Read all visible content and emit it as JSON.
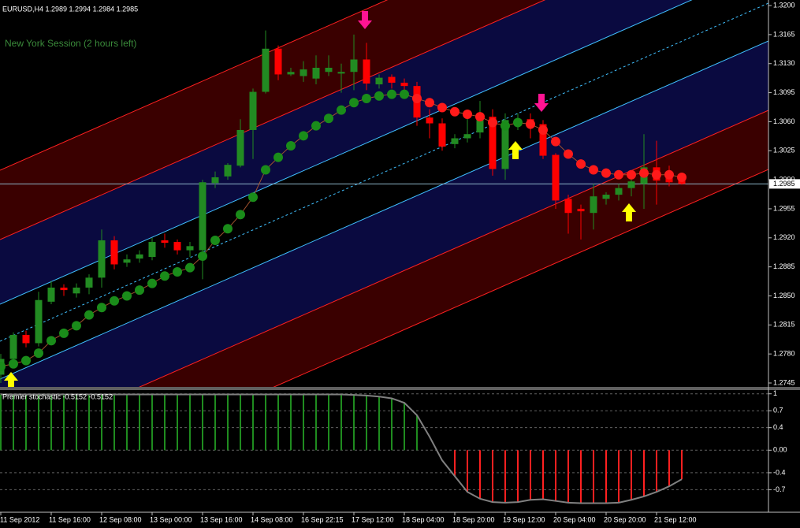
{
  "chart_data": [
    {
      "type": "candlestick",
      "title": "EURUSD,H4  1.2989 1.2994 1.2984 1.2985",
      "annotation": "New York Session (2 hours left)",
      "categories": [
        "11 Sep 2012",
        null,
        null,
        null,
        "11 Sep 16:00",
        null,
        null,
        null,
        "12 Sep 08:00",
        null,
        null,
        null,
        "13 Sep 00:00",
        null,
        null,
        null,
        "13 Sep 16:00",
        null,
        null,
        null,
        "14 Sep 08:00",
        null,
        null,
        null,
        "16 Sep 22:15",
        null,
        null,
        null,
        "17 Sep 12:00",
        null,
        null,
        null,
        "18 Sep 04:00",
        null,
        null,
        null,
        "18 Sep 20:00",
        null,
        null,
        null,
        "19 Sep 12:00",
        null,
        null,
        null,
        "20 Sep 04:00",
        null,
        null,
        null,
        "20 Sep 20:00",
        null,
        null,
        null,
        "21 Sep 12:00",
        null,
        null
      ],
      "open": [
        1.2755,
        1.2774,
        1.2803,
        1.2793,
        1.2843,
        1.286,
        1.2853,
        1.286,
        1.2872,
        1.2917,
        1.289,
        1.2895,
        1.2897,
        1.2917,
        1.2915,
        1.2905,
        1.2905,
        1.2986,
        1.2994,
        1.3007,
        1.305,
        1.3096,
        1.3148,
        1.3117,
        1.3115,
        1.3112,
        1.312,
        1.3118,
        1.312,
        1.3135,
        1.3105,
        1.3114,
        1.3107,
        1.3103,
        1.3065,
        1.3058,
        1.3033,
        1.304,
        1.3047,
        1.3066,
        1.3003,
        1.306,
        1.3063,
        1.3057,
        1.302,
        1.2967,
        1.2955,
        1.295,
        1.2967,
        1.2972,
        1.298,
        1.2985,
        1.3005,
        1.2997,
        1.2989
      ],
      "high": [
        1.278,
        1.2806,
        1.2808,
        1.2855,
        1.2868,
        1.2864,
        1.2865,
        1.2876,
        1.293,
        1.2922,
        1.29,
        1.2905,
        1.292,
        1.2925,
        1.2918,
        1.2915,
        1.299,
        1.3,
        1.301,
        1.3063,
        1.31,
        1.317,
        1.3152,
        1.3125,
        1.3133,
        1.314,
        1.314,
        1.313,
        1.3165,
        1.3155,
        1.3117,
        1.3117,
        1.3112,
        1.3108,
        1.3075,
        1.3064,
        1.3045,
        1.307,
        1.3085,
        1.3075,
        1.307,
        1.307,
        1.307,
        1.3062,
        1.3022,
        1.2972,
        1.296,
        1.2985,
        1.2975,
        1.2985,
        1.2995,
        1.3045,
        1.3037,
        1.3007,
        1.2994
      ],
      "low": [
        1.2745,
        1.277,
        1.2788,
        1.2789,
        1.284,
        1.285,
        1.2848,
        1.2852,
        1.286,
        1.2882,
        1.2885,
        1.289,
        1.2893,
        1.2908,
        1.29,
        1.2897,
        1.287,
        1.298,
        1.299,
        1.3005,
        1.3015,
        1.3094,
        1.311,
        1.3115,
        1.3108,
        1.3105,
        1.3115,
        1.3095,
        1.3098,
        1.3098,
        1.31,
        1.31,
        1.309,
        1.3055,
        1.304,
        1.3025,
        1.3028,
        1.3035,
        1.304,
        1.2995,
        1.299,
        1.305,
        1.304,
        1.3015,
        1.2955,
        1.2925,
        1.2918,
        1.293,
        1.296,
        1.2965,
        1.297,
        1.2955,
        1.296,
        1.2982,
        1.2984
      ],
      "close": [
        1.2774,
        1.2803,
        1.2793,
        1.2845,
        1.286,
        1.2857,
        1.286,
        1.2872,
        1.2917,
        1.2888,
        1.2894,
        1.29,
        1.2915,
        1.2914,
        1.2905,
        1.291,
        1.2987,
        1.2993,
        1.3008,
        1.305,
        1.3096,
        1.3148,
        1.3117,
        1.312,
        1.3123,
        1.3125,
        1.3125,
        1.312,
        1.3135,
        1.3106,
        1.3113,
        1.3107,
        1.3103,
        1.3065,
        1.3058,
        1.303,
        1.304,
        1.3045,
        1.3063,
        1.3003,
        1.3062,
        1.3063,
        1.3056,
        1.3019,
        1.2965,
        1.295,
        1.2952,
        1.297,
        1.2972,
        1.298,
        1.2988,
        1.3005,
        1.2989,
        1.2987,
        1.2985
      ],
      "up_color": "#228b22",
      "down_color": "#ff0000",
      "dots": {
        "values": [
          1.2765,
          1.2768,
          1.2772,
          1.2781,
          1.2796,
          1.2805,
          1.2814,
          1.2827,
          1.2836,
          1.2844,
          1.285,
          1.2857,
          1.2865,
          1.2874,
          1.2879,
          1.2884,
          1.2898,
          1.2917,
          1.2931,
          1.2948,
          1.2969,
          1.3002,
          1.3017,
          1.3031,
          1.3043,
          1.3055,
          1.3064,
          1.3074,
          1.3083,
          1.3088,
          1.3091,
          1.3093,
          1.3093,
          1.3088,
          1.3083,
          1.3077,
          1.3072,
          1.3069,
          1.3066,
          1.3059,
          1.3055,
          1.3059,
          1.3057,
          1.305,
          1.3036,
          1.3021,
          1.3009,
          1.3002,
          1.2998,
          1.2996,
          1.2996,
          1.2998,
          1.2996,
          1.2996,
          1.2993
        ],
        "point_colors": [
          "#1a8c1a",
          "#1a8c1a",
          "#1a8c1a",
          "#1a8c1a",
          "#1a8c1a",
          "#1a8c1a",
          "#1a8c1a",
          "#1a8c1a",
          "#1a8c1a",
          "#1a8c1a",
          "#1a8c1a",
          "#1a8c1a",
          "#1a8c1a",
          "#1a8c1a",
          "#1a8c1a",
          "#1a8c1a",
          "#1a8c1a",
          "#1a8c1a",
          "#1a8c1a",
          "#1a8c1a",
          "#1a8c1a",
          "#1a8c1a",
          "#1a8c1a",
          "#1a8c1a",
          "#1a8c1a",
          "#1a8c1a",
          "#1a8c1a",
          "#1a8c1a",
          "#1a8c1a",
          "#1a8c1a",
          "#1a8c1a",
          "#1a8c1a",
          "#1a8c1a",
          "#ff1a1a",
          "#ff1a1a",
          "#ff1a1a",
          "#ff1a1a",
          "#ff1a1a",
          "#ff1a1a",
          "#ff1a1a",
          "#1a8c1a",
          "#1a8c1a",
          "#ff1a1a",
          "#ff1a1a",
          "#ff1a1a",
          "#ff1a1a",
          "#ff1a1a",
          "#ff1a1a",
          "#ff1a1a",
          "#ff1a1a",
          "#ff1a1a",
          "#ff1a1a",
          "#ff1a1a",
          "#ff1a1a",
          "#ff1a1a"
        ],
        "line_color": "#a0522d"
      },
      "current_price": 1.2985,
      "ylim": [
        1.27412,
        1.32067
      ],
      "yticks": [
        {
          "value": 1.32,
          "label": "1.3200"
        },
        1.3165,
        {
          "value": 1.313,
          "label": "1.3130"
        },
        1.3095,
        {
          "value": 1.306,
          "label": "1.3060"
        },
        1.3025,
        {
          "value": 1.299,
          "label": "1.2990"
        },
        1.2955,
        {
          "value": 1.292,
          "label": "1.2920"
        },
        1.2885,
        {
          "value": 1.285,
          "label": "1.2850"
        },
        1.2815,
        {
          "value": 1.278,
          "label": "1.2780"
        },
        1.2745
      ]
    },
    {
      "type": "stochastic",
      "title": "Premier stochastic -0.5152 -0.5152",
      "line": [
        0.99,
        0.99,
        0.99,
        0.99,
        0.99,
        0.99,
        0.99,
        0.99,
        0.99,
        0.99,
        0.99,
        0.99,
        0.99,
        0.99,
        0.99,
        0.99,
        0.99,
        0.99,
        0.99,
        0.99,
        0.99,
        0.99,
        0.99,
        0.99,
        0.99,
        0.99,
        0.99,
        0.99,
        0.98,
        0.97,
        0.95,
        0.92,
        0.84,
        0.62,
        0.24,
        -0.18,
        -0.46,
        -0.74,
        -0.86,
        -0.92,
        -0.93,
        -0.92,
        -0.88,
        -0.87,
        -0.9,
        -0.93,
        -0.94,
        -0.94,
        -0.94,
        -0.93,
        -0.88,
        -0.82,
        -0.74,
        -0.64,
        -0.5152
      ],
      "histogram": [
        0.99,
        0.99,
        0.99,
        0.99,
        0.99,
        0.99,
        0.99,
        0.99,
        0.99,
        0.99,
        0.99,
        0.99,
        0.99,
        0.99,
        0.99,
        0.99,
        0.99,
        0.99,
        0.99,
        0.99,
        0.99,
        0.99,
        0.99,
        0.99,
        0.99,
        0.99,
        0.99,
        0.99,
        0.98,
        0.97,
        0.95,
        0.92,
        0.84,
        0.62,
        null,
        null,
        -0.46,
        -0.74,
        -0.86,
        -0.92,
        -0.93,
        -0.92,
        -0.88,
        -0.87,
        -0.9,
        -0.93,
        -0.94,
        -0.94,
        -0.94,
        -0.93,
        -0.88,
        -0.82,
        -0.74,
        -0.64,
        -0.5152
      ],
      "line_color": "#808080",
      "pos_color": "#1f8c1f",
      "neg_color": "#ff2020",
      "ylim": [
        -1.1,
        1.08
      ],
      "yticks": [
        1,
        0.7,
        0.4,
        {
          "value": 0,
          "label": "0.00"
        },
        -0.4,
        -0.7
      ],
      "grid": true
    }
  ]
}
